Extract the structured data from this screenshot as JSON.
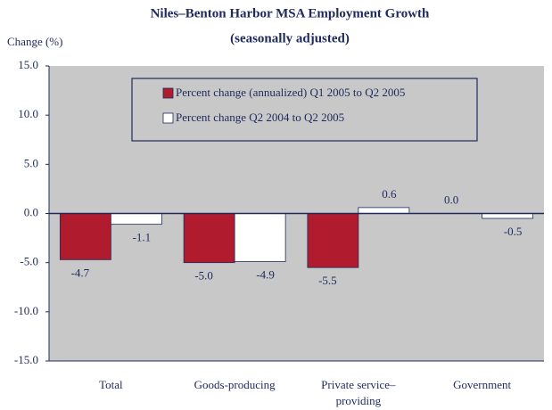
{
  "chart_data": {
    "type": "bar",
    "title": "Niles–Benton Harbor MSA Employment Growth",
    "subtitle": "(seasonally adjusted)",
    "y_label": "Change (%)",
    "categories": [
      "Total",
      "Goods-producing",
      "Private service–providing",
      "Government"
    ],
    "series": [
      {
        "name": "Percent change (annualized) Q1 2005 to Q2 2005",
        "color": "#b01c2e",
        "values": [
          -4.7,
          -5.0,
          -5.5,
          0.0
        ],
        "value_labels": [
          "-4.7",
          "-5.0",
          "-5.5",
          "0.0"
        ]
      },
      {
        "name": "Percent change Q2 2004 to Q2 2005",
        "color": "#ffffff",
        "values": [
          -1.1,
          -4.9,
          0.6,
          -0.5
        ],
        "value_labels": [
          "-1.1",
          "-4.9",
          "0.6",
          "-0.5"
        ]
      }
    ],
    "ylim": [
      -15,
      15
    ],
    "yticks": [
      {
        "value": -15,
        "label": "-15.0"
      },
      {
        "value": -10,
        "label": "-10.0"
      },
      {
        "value": -5,
        "label": "-5.0"
      },
      {
        "value": 0,
        "label": "0.0"
      },
      {
        "value": 5,
        "label": "5.0"
      },
      {
        "value": 10,
        "label": "10.0"
      },
      {
        "value": 15,
        "label": "15.0"
      }
    ],
    "grid": false
  }
}
